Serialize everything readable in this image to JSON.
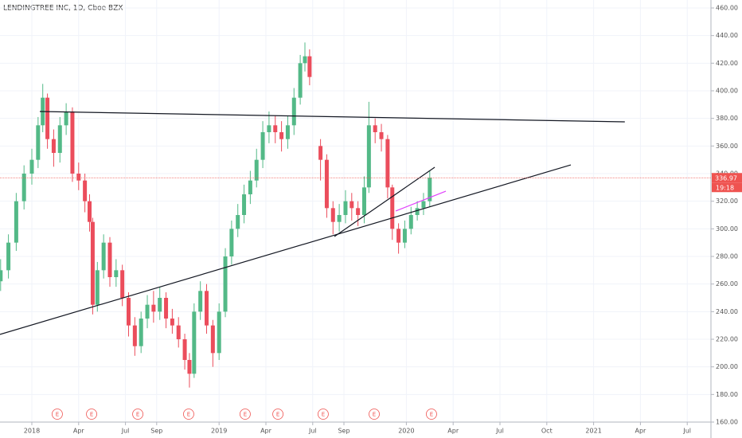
{
  "chart_data": {
    "type": "candlestick",
    "title": "LENDINGTREE INC, 1D, Cboe BZX",
    "up_color": "#53b987",
    "down_color": "#eb4d5c",
    "x": [
      -2.0,
      -1.5,
      -1.0,
      -0.5,
      0.0,
      0.4,
      0.7,
      1.0,
      1.4,
      1.8,
      2.2,
      2.6,
      3.0,
      3.4,
      3.7,
      3.9,
      4.2,
      4.6,
      5.0,
      5.4,
      5.8,
      6.2,
      6.6,
      7.0,
      7.4,
      7.8,
      8.2,
      8.6,
      9.0,
      9.4,
      9.8,
      10.1,
      10.4,
      10.8,
      11.2,
      11.6,
      12.0,
      12.4,
      12.8,
      13.2,
      13.6,
      14.0,
      14.4,
      14.8,
      15.2,
      15.6,
      16.0,
      16.4,
      16.8,
      17.2,
      17.5,
      17.8,
      18.5,
      18.9,
      19.3,
      19.7,
      20.1,
      20.5,
      20.9,
      21.3,
      21.6,
      22.0,
      22.4,
      22.8,
      23.1,
      23.5,
      23.9,
      24.3,
      24.7,
      25.1,
      25.5
    ],
    "open": [
      262,
      270,
      290,
      320,
      340,
      350,
      375,
      395,
      365,
      355,
      375,
      385,
      340,
      335,
      320,
      305,
      245,
      270,
      290,
      265,
      270,
      250,
      230,
      215,
      235,
      245,
      240,
      250,
      235,
      230,
      220,
      205,
      195,
      240,
      255,
      230,
      210,
      240,
      280,
      300,
      310,
      325,
      335,
      350,
      370,
      375,
      370,
      365,
      375,
      395,
      420,
      425,
      360,
      350,
      315,
      305,
      310,
      320,
      315,
      310,
      330,
      375,
      370,
      365,
      330,
      300,
      290,
      300,
      310,
      315,
      320
    ],
    "high": [
      278,
      296,
      326,
      346,
      358,
      381,
      405,
      398,
      372,
      381,
      391,
      388,
      348,
      340,
      325,
      308,
      276,
      296,
      294,
      278,
      274,
      254,
      236,
      240,
      252,
      255,
      258,
      254,
      242,
      236,
      224,
      210,
      246,
      262,
      260,
      234,
      246,
      286,
      306,
      318,
      332,
      342,
      358,
      378,
      385,
      382,
      378,
      382,
      402,
      426,
      435,
      430,
      365,
      354,
      320,
      318,
      328,
      326,
      320,
      338,
      392,
      380,
      376,
      368,
      332,
      304,
      306,
      316,
      320,
      326,
      342
    ],
    "low": [
      255,
      264,
      284,
      314,
      332,
      344,
      370,
      358,
      345,
      348,
      368,
      334,
      328,
      312,
      298,
      238,
      240,
      264,
      258,
      258,
      244,
      222,
      208,
      210,
      228,
      232,
      234,
      228,
      224,
      214,
      198,
      185,
      192,
      234,
      224,
      200,
      205,
      236,
      274,
      294,
      304,
      318,
      330,
      344,
      362,
      362,
      356,
      358,
      368,
      390,
      414,
      404,
      335,
      308,
      296,
      298,
      304,
      306,
      302,
      304,
      326,
      362,
      356,
      322,
      292,
      282,
      286,
      296,
      306,
      310,
      316
    ],
    "close": [
      270,
      290,
      320,
      340,
      350,
      375,
      395,
      365,
      355,
      375,
      385,
      340,
      335,
      320,
      305,
      245,
      270,
      290,
      265,
      270,
      250,
      230,
      215,
      235,
      245,
      240,
      250,
      235,
      230,
      220,
      205,
      195,
      240,
      255,
      230,
      210,
      240,
      280,
      300,
      310,
      325,
      335,
      350,
      370,
      375,
      370,
      365,
      375,
      395,
      420,
      425,
      410,
      350,
      315,
      305,
      310,
      320,
      315,
      310,
      330,
      375,
      370,
      365,
      330,
      300,
      290,
      300,
      310,
      315,
      320,
      337
    ],
    "xlim": [
      -2.04,
      43.52
    ],
    "ylim": [
      160,
      465.77
    ],
    "xticks": [
      {
        "value": 0,
        "label": "2018"
      },
      {
        "value": 3,
        "label": "Apr"
      },
      {
        "value": 6,
        "label": "Jul"
      },
      {
        "value": 8,
        "label": "Sep"
      },
      {
        "value": 12,
        "label": "2019"
      },
      {
        "value": 15,
        "label": "Apr"
      },
      {
        "value": 18,
        "label": "Jul"
      },
      {
        "value": 20,
        "label": "Sep"
      },
      {
        "value": 24,
        "label": "2020"
      },
      {
        "value": 27,
        "label": "Apr"
      },
      {
        "value": 30,
        "label": "Jul"
      },
      {
        "value": 33,
        "label": "Oct"
      },
      {
        "value": 36,
        "label": "2021"
      },
      {
        "value": 39,
        "label": "Apr"
      },
      {
        "value": 42,
        "label": "Jul"
      }
    ],
    "yticks": [
      {
        "value": 160,
        "label": "160.00"
      },
      {
        "value": 180,
        "label": "180.00"
      },
      {
        "value": 200,
        "label": "200.00"
      },
      {
        "value": 220,
        "label": "220.00"
      },
      {
        "value": 240,
        "label": "240.00"
      },
      {
        "value": 260,
        "label": "260.00"
      },
      {
        "value": 280,
        "label": "280.00"
      },
      {
        "value": 300,
        "label": "300.00"
      },
      {
        "value": 320,
        "label": "320.00"
      },
      {
        "value": 340,
        "label": "340.00"
      },
      {
        "value": 360,
        "label": "360.00"
      },
      {
        "value": 380,
        "label": "380.00"
      },
      {
        "value": 400,
        "label": "400.00"
      },
      {
        "value": 420,
        "label": "420.00"
      },
      {
        "value": 440,
        "label": "440.00"
      },
      {
        "value": 460,
        "label": "460.00"
      }
    ],
    "grid": true,
    "last_price": 336.97,
    "last_price_color": "#ef5350",
    "countdown": "19:18",
    "lines": [
      {
        "color": "#131722",
        "x": [
          0.51,
          38.0
        ],
        "y": [
          385,
          377.5
        ]
      },
      {
        "color": "#131722",
        "x": [
          -2.04,
          34.54
        ],
        "y": [
          223.5,
          346.3
        ]
      },
      {
        "color": "#131722",
        "x": [
          19.39,
          25.82
        ],
        "y": [
          294.4,
          344.6
        ]
      },
      {
        "color": "#e040fb",
        "x": [
          23.32,
          26.53
        ],
        "y": [
          312.9,
          327.3
        ]
      }
    ],
    "earnings_label": "E",
    "earnings_x": [
      1.63,
      3.83,
      6.79,
      10.05,
      13.67,
      15.77,
      18.67,
      21.94,
      25.61
    ]
  }
}
